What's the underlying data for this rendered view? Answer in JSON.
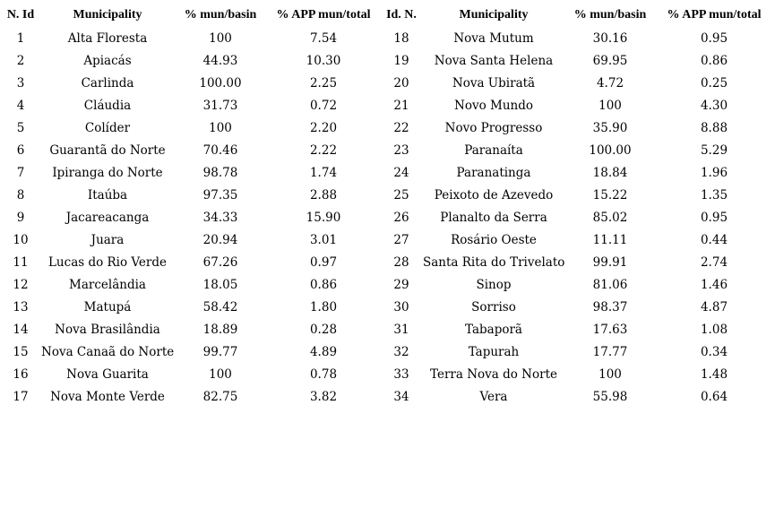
{
  "table": {
    "headers": [
      "N. Id",
      "Municipality",
      "% mun/basin",
      "% APP mun/total",
      "Id. N.",
      "Municipality",
      "% mun/basin",
      "% APP mun/total"
    ],
    "rows": [
      [
        "1",
        "Alta Floresta",
        "100",
        "7.54",
        "18",
        "Nova Mutum",
        "30.16",
        "0.95"
      ],
      [
        "2",
        "Apiacás",
        "44.93",
        "10.30",
        "19",
        "Nova Santa Helena",
        "69.95",
        "0.86"
      ],
      [
        "3",
        "Carlinda",
        "100.00",
        "2.25",
        "20",
        "Nova Ubiratã",
        "4.72",
        "0.25"
      ],
      [
        "4",
        "Cláudia",
        "31.73",
        "0.72",
        "21",
        "Novo Mundo",
        "100",
        "4.30"
      ],
      [
        "5",
        "Colíder",
        "100",
        "2.20",
        "22",
        "Novo Progresso",
        "35.90",
        "8.88"
      ],
      [
        "6",
        "Guarantã do Norte",
        "70.46",
        "2.22",
        "23",
        "Paranaíta",
        "100.00",
        "5.29"
      ],
      [
        "7",
        "Ipiranga do Norte",
        "98.78",
        "1.74",
        "24",
        "Paranatinga",
        "18.84",
        "1.96"
      ],
      [
        "8",
        "Itaúba",
        "97.35",
        "2.88",
        "25",
        "Peixoto de Azevedo",
        "15.22",
        "1.35"
      ],
      [
        "9",
        "Jacareacanga",
        "34.33",
        "15.90",
        "26",
        "Planalto da Serra",
        "85.02",
        "0.95"
      ],
      [
        "10",
        "Juara",
        "20.94",
        "3.01",
        "27",
        "Rosário Oeste",
        "11.11",
        "0.44"
      ],
      [
        "11",
        "Lucas do Rio Verde",
        "67.26",
        "0.97",
        "28",
        "Santa Rita do Trivelato",
        "99.91",
        "2.74"
      ],
      [
        "12",
        "Marcelândia",
        "18.05",
        "0.86",
        "29",
        "Sinop",
        "81.06",
        "1.46"
      ],
      [
        "13",
        "Matupá",
        "58.42",
        "1.80",
        "30",
        "Sorriso",
        "98.37",
        "4.87"
      ],
      [
        "14",
        "Nova Brasilândia",
        "18.89",
        "0.28",
        "31",
        "Tabaporã",
        "17.63",
        "1.08"
      ],
      [
        "15",
        "Nova Canaã do Norte",
        "99.77",
        "4.89",
        "32",
        "Tapurah",
        "17.77",
        "0.34"
      ],
      [
        "16",
        "Nova Guarita",
        "100",
        "0.78",
        "33",
        "Terra Nova do Norte",
        "100",
        "1.48"
      ],
      [
        "17",
        "Nova Monte Verde",
        "82.75",
        "3.82",
        "34",
        "Vera",
        "55.98",
        "0.64"
      ]
    ]
  }
}
